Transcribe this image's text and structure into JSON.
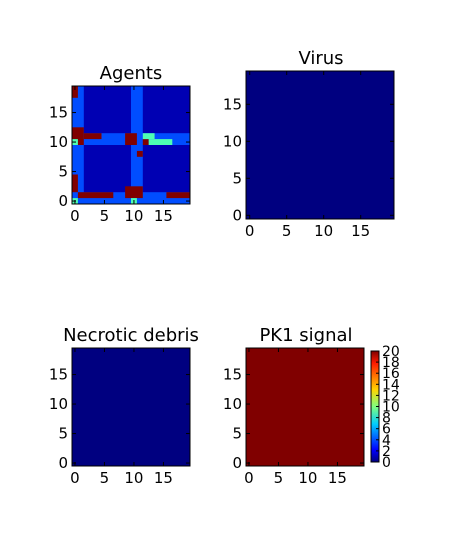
{
  "colors": {
    "dark_navy": "#00007f",
    "blue": "#0d1cff",
    "cyan": "#33dbe0",
    "green": "#3cc98a",
    "red_brown": "#8b0000"
  },
  "chart_data": [
    {
      "type": "heatmap",
      "title": "Agents",
      "grid": false,
      "xlim": [
        -0.5,
        19.5
      ],
      "ylim": [
        -0.5,
        19.5
      ],
      "x_ticks": [
        "0",
        "5",
        "10",
        "15"
      ],
      "y_ticks": [
        "0",
        "5",
        "10",
        "15"
      ],
      "background_value": 1,
      "blocks": [
        {
          "x": [
            0,
            1
          ],
          "y": [
            0,
            19
          ],
          "value": 4
        },
        {
          "x": [
            10,
            11
          ],
          "y": [
            0,
            19
          ],
          "value": 4
        },
        {
          "x": [
            0,
            19
          ],
          "y": [
            10,
            11
          ],
          "value": 4
        },
        {
          "x": [
            0,
            19
          ],
          "y": [
            0,
            1
          ],
          "value": 4
        },
        {
          "x": [
            0,
            1
          ],
          "y": [
            10,
            12
          ],
          "value": 20
        },
        {
          "x": [
            2,
            4
          ],
          "y": [
            11,
            11
          ],
          "value": 20
        },
        {
          "x": [
            9,
            10
          ],
          "y": [
            10,
            11
          ],
          "value": 20
        },
        {
          "x": [
            12,
            12
          ],
          "y": [
            10,
            10
          ],
          "value": 20
        },
        {
          "x": [
            0,
            0
          ],
          "y": [
            18,
            19
          ],
          "value": 20
        },
        {
          "x": [
            0,
            0
          ],
          "y": [
            2,
            4
          ],
          "value": 20
        },
        {
          "x": [
            1,
            6
          ],
          "y": [
            1,
            1
          ],
          "value": 20
        },
        {
          "x": [
            9,
            11
          ],
          "y": [
            1,
            2
          ],
          "value": 20
        },
        {
          "x": [
            11,
            11
          ],
          "y": [
            8,
            8
          ],
          "value": 20
        },
        {
          "x": [
            16,
            19
          ],
          "y": [
            1,
            1
          ],
          "value": 20
        },
        {
          "x": [
            12,
            13
          ],
          "y": [
            11,
            11
          ],
          "value": 9
        },
        {
          "x": [
            13,
            16
          ],
          "y": [
            10,
            10
          ],
          "value": 9
        },
        {
          "x": [
            0,
            0
          ],
          "y": [
            10,
            10
          ],
          "value": 9
        },
        {
          "x": [
            0,
            0
          ],
          "y": [
            0,
            0
          ],
          "value": 9
        },
        {
          "x": [
            10,
            10
          ],
          "y": [
            0,
            0
          ],
          "value": 9
        }
      ]
    },
    {
      "type": "heatmap",
      "title": "Virus",
      "grid": false,
      "xlim": [
        -0.5,
        19.5
      ],
      "ylim": [
        -0.5,
        19.5
      ],
      "x_ticks": [
        "0",
        "5",
        "10",
        "15"
      ],
      "y_ticks": [
        "0",
        "5",
        "10",
        "15"
      ],
      "background_value": 0,
      "blocks": []
    },
    {
      "type": "heatmap",
      "title": "Necrotic debris",
      "grid": false,
      "xlim": [
        -0.5,
        19.5
      ],
      "ylim": [
        -0.5,
        19.5
      ],
      "x_ticks": [
        "0",
        "5",
        "10",
        "15"
      ],
      "y_ticks": [
        "0",
        "5",
        "10",
        "15"
      ],
      "background_value": 0,
      "blocks": []
    },
    {
      "type": "heatmap",
      "title": "PK1 signal",
      "grid": false,
      "xlim": [
        -0.5,
        19.5
      ],
      "ylim": [
        -0.5,
        19.5
      ],
      "x_ticks": [
        "0",
        "5",
        "10",
        "15"
      ],
      "y_ticks": [
        "0",
        "5",
        "10",
        "15"
      ],
      "background_value": 20,
      "blocks": [],
      "colorbar": {
        "range": [
          0,
          20
        ],
        "ticks": [
          "0",
          "2",
          "4",
          "6",
          "8",
          "10",
          "12",
          "14",
          "16",
          "18",
          "20"
        ]
      }
    }
  ]
}
